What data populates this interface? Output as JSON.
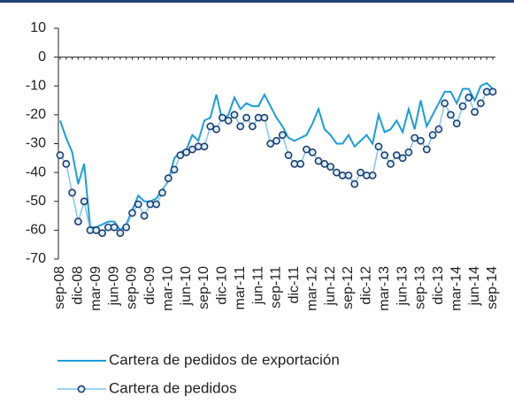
{
  "chart_data": {
    "type": "line",
    "categories": [
      "sep-08",
      null,
      null,
      "dic-08",
      null,
      null,
      "mar-09",
      null,
      null,
      "jun-09",
      null,
      null,
      "sep-09",
      null,
      null,
      "dic-09",
      null,
      null,
      "mar-10",
      null,
      null,
      "jun-10",
      null,
      null,
      "sep-10",
      null,
      null,
      "dic-10",
      null,
      null,
      "mar-11",
      null,
      null,
      "jun-11",
      null,
      null,
      "sep-11",
      null,
      null,
      "dic-11",
      null,
      null,
      "mar-12",
      null,
      null,
      "jun-12",
      null,
      null,
      "sep-12",
      null,
      null,
      "dic-12",
      null,
      null,
      "mar-13",
      null,
      null,
      "jun-13",
      null,
      null,
      "sep-13",
      null,
      null,
      "dic-13",
      null,
      null,
      "mar-14",
      null,
      null,
      "jun-14",
      null,
      null,
      "sep-14"
    ],
    "series": [
      {
        "name": "Cartera de pedidos de exportación",
        "color": "#1b9dd9",
        "marker": false,
        "values": [
          -22,
          -28,
          -33,
          -44,
          -37,
          -59,
          -59,
          -58,
          -57,
          -57,
          -60,
          -58,
          -53,
          -48,
          -50,
          -50,
          -49,
          -46,
          -43,
          -35,
          -33,
          -32,
          -27,
          -29,
          -22,
          -21,
          -13,
          -22,
          -20,
          -14,
          -18,
          -16,
          -17,
          -17,
          -13,
          -17,
          -21,
          -24,
          -28,
          -29,
          -28,
          -27,
          -23,
          -18,
          -25,
          -27,
          -30,
          -30,
          -27,
          -31,
          -29,
          -27,
          -30,
          -20,
          -26,
          -25,
          -22,
          -26,
          -18,
          -25,
          -15,
          -24,
          -20,
          -16,
          -12,
          -12,
          -16,
          -11,
          -11,
          -15,
          -10,
          -9,
          -11
        ]
      },
      {
        "name": "Cartera de pedidos",
        "color": "#7fc6ea",
        "marker": true,
        "marker_color": "#1f3f73",
        "values": [
          -34,
          -37,
          -47,
          -57,
          -50,
          -60,
          -60,
          -61,
          -59,
          -59,
          -61,
          -59,
          -54,
          -51,
          -55,
          -51,
          -51,
          -47,
          -42,
          -39,
          -34,
          -33,
          -32,
          -31,
          -31,
          -24,
          -25,
          -21,
          -22,
          -20,
          -24,
          -21,
          -24,
          -21,
          -21,
          -30,
          -29,
          -27,
          -34,
          -37,
          -37,
          -32,
          -33,
          -36,
          -37,
          -38,
          -40,
          -41,
          -41,
          -44,
          -40,
          -41,
          -41,
          -31,
          -34,
          -37,
          -34,
          -35,
          -33,
          -28,
          -29,
          -32,
          -27,
          -25,
          -16,
          -20,
          -23,
          -17,
          -14,
          -19,
          -16,
          -12,
          -12
        ]
      }
    ],
    "ylim": [
      -70,
      10
    ],
    "yticks": [
      -70,
      -60,
      -50,
      -40,
      -30,
      -20,
      -10,
      0,
      10
    ]
  }
}
